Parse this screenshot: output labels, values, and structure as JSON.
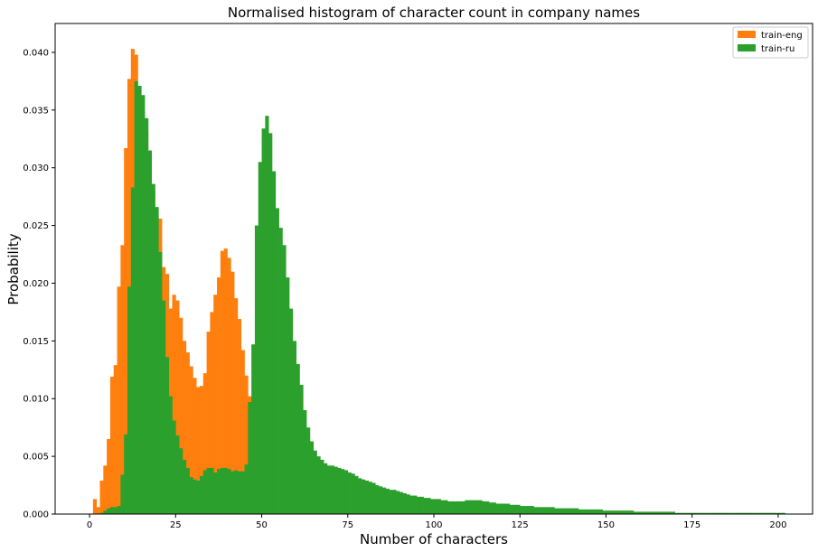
{
  "chart_data": {
    "type": "bar",
    "title": "Normalised histogram of character count in company names",
    "xlabel": "Number of characters",
    "ylabel": "Probability",
    "xlim": [
      -10,
      210
    ],
    "ylim": [
      0,
      0.0425
    ],
    "xticks": [
      0,
      25,
      50,
      75,
      100,
      125,
      150,
      175,
      200
    ],
    "yticks": [
      0.0,
      0.005,
      0.01,
      0.015,
      0.02,
      0.025,
      0.03,
      0.035,
      0.04
    ],
    "ytick_labels": [
      "0.000",
      "0.005",
      "0.010",
      "0.015",
      "0.020",
      "0.025",
      "0.030",
      "0.035",
      "0.040"
    ],
    "bin_width": 1,
    "legend_position": "top-right",
    "grid": false,
    "series": [
      {
        "name": "train-eng",
        "color": "#ff7f0e",
        "bin_start": 1,
        "values": [
          0.0013,
          0.0006,
          0.0029,
          0.0042,
          0.0065,
          0.0119,
          0.0129,
          0.0197,
          0.0233,
          0.0317,
          0.0377,
          0.0403,
          0.0398,
          0.0359,
          0.0349,
          0.0332,
          0.0308,
          0.028,
          0.0258,
          0.0256,
          0.0214,
          0.0208,
          0.0178,
          0.019,
          0.0185,
          0.017,
          0.015,
          0.014,
          0.0128,
          0.0118,
          0.011,
          0.0111,
          0.0122,
          0.0158,
          0.0175,
          0.019,
          0.0205,
          0.0228,
          0.023,
          0.0222,
          0.021,
          0.0187,
          0.0169,
          0.0142,
          0.012,
          0.0102,
          0.0085,
          0.0066
        ]
      },
      {
        "name": "train-ru",
        "color": "#2ca02c",
        "bin_start": 1,
        "values": [
          0.0,
          0.0,
          0.0001,
          0.0003,
          0.0005,
          0.0006,
          0.0006,
          0.0007,
          0.0034,
          0.0069,
          0.0197,
          0.0283,
          0.0375,
          0.0371,
          0.0363,
          0.0343,
          0.0315,
          0.0286,
          0.0266,
          0.0227,
          0.0185,
          0.0136,
          0.0102,
          0.0081,
          0.0068,
          0.0057,
          0.0047,
          0.004,
          0.0032,
          0.003,
          0.0029,
          0.0033,
          0.0038,
          0.004,
          0.004,
          0.0036,
          0.0039,
          0.004,
          0.004,
          0.0039,
          0.0037,
          0.0038,
          0.0037,
          0.0037,
          0.0043,
          0.0097,
          0.0147,
          0.025,
          0.0305,
          0.0334,
          0.0345,
          0.033,
          0.0297,
          0.0265,
          0.0248,
          0.0233,
          0.0205,
          0.0178,
          0.015,
          0.013,
          0.0112,
          0.009,
          0.0075,
          0.0063,
          0.0055,
          0.005,
          0.0047,
          0.0044,
          0.0042,
          0.0042,
          0.0041,
          0.004,
          0.0039,
          0.0038,
          0.0036,
          0.0035,
          0.0033,
          0.0031,
          0.003,
          0.0029,
          0.0028,
          0.0027,
          0.0025,
          0.0024,
          0.0023,
          0.0022,
          0.0021,
          0.0021,
          0.002,
          0.0019,
          0.0018,
          0.0017,
          0.0016,
          0.0016,
          0.0015,
          0.0015,
          0.0014,
          0.0014,
          0.0013,
          0.0013,
          0.0013,
          0.0012,
          0.0012,
          0.0011,
          0.0011,
          0.0011,
          0.0011,
          0.0011,
          0.0012,
          0.0012,
          0.0012,
          0.0012,
          0.0012,
          0.0011,
          0.0011,
          0.001,
          0.001,
          0.0009,
          0.0009,
          0.0009,
          0.0009,
          0.0008,
          0.0008,
          0.0008,
          0.0007,
          0.0007,
          0.0007,
          0.0007,
          0.0006,
          0.0006,
          0.0006,
          0.0006,
          0.0006,
          0.0006,
          0.0005,
          0.0005,
          0.0005,
          0.0005,
          0.0005,
          0.0005,
          0.0005,
          0.0004,
          0.0004,
          0.0004,
          0.0004,
          0.0004,
          0.0004,
          0.0004,
          0.0003,
          0.0003,
          0.0003,
          0.0003,
          0.0003,
          0.0003,
          0.0003,
          0.0003,
          0.0003,
          0.0002,
          0.0002,
          0.0002,
          0.0002,
          0.0002,
          0.0002,
          0.0002,
          0.0002,
          0.0002,
          0.0002,
          0.0002,
          0.0002,
          0.0001,
          0.0001,
          0.0001,
          0.0001,
          0.0001,
          0.0001,
          0.0001,
          0.0001,
          0.0001,
          0.0001,
          0.0001,
          0.0001,
          0.0001,
          0.0001,
          0.0001,
          0.0001,
          0.0001,
          0.0001,
          0.0001,
          0.0001,
          0.0001,
          0.0001,
          0.0001,
          0.0001,
          0.0001,
          0.0001,
          0.0001,
          0.0001,
          0.0001,
          0.0001,
          0.0001,
          0.0001
        ]
      }
    ]
  }
}
